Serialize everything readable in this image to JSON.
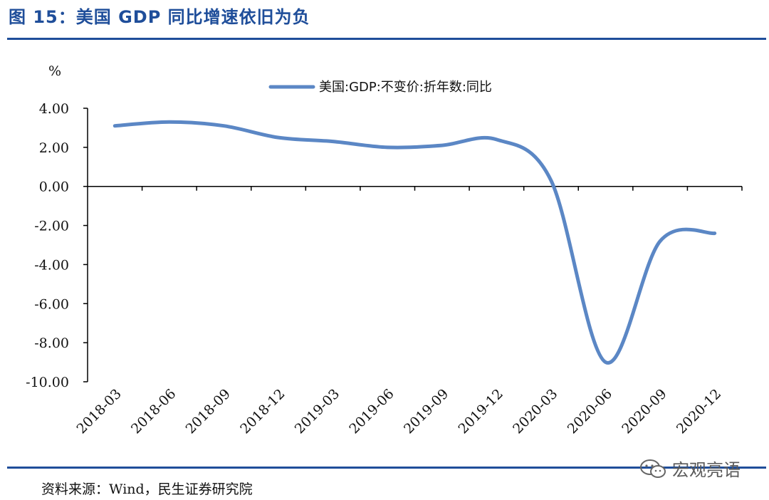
{
  "header": {
    "title": "图 15：美国 GDP 同比增速依旧为负"
  },
  "footer": {
    "source": "资料来源：Wind，民生证券研究院"
  },
  "watermark": {
    "text": "宏观亮语",
    "icon": "wechat-icon"
  },
  "colors": {
    "accent": "#1f4e9a",
    "series": "#5b87c5"
  },
  "chart_data": {
    "type": "line",
    "title": "",
    "ylabel": "%",
    "xlabel": "",
    "ylim": [
      -10,
      4
    ],
    "yticks": [
      4,
      2,
      0,
      -2,
      -4,
      -6,
      -8,
      -10
    ],
    "ytick_labels": [
      "4.00",
      "2.00",
      "0.00",
      "-2.00",
      "-4.00",
      "-6.00",
      "-8.00",
      "-10.00"
    ],
    "categories": [
      "2018-03",
      "2018-06",
      "2018-09",
      "2018-12",
      "2019-03",
      "2019-06",
      "2019-09",
      "2019-12",
      "2020-03",
      "2020-06",
      "2020-09",
      "2020-12"
    ],
    "series": [
      {
        "name": "美国:GDP:不变价:折年数:同比",
        "values": [
          3.1,
          3.3,
          3.1,
          2.5,
          2.3,
          2.0,
          2.1,
          2.4,
          0.3,
          -9.0,
          -2.8,
          -2.4
        ]
      }
    ],
    "legend": "top-center",
    "grid": false
  }
}
